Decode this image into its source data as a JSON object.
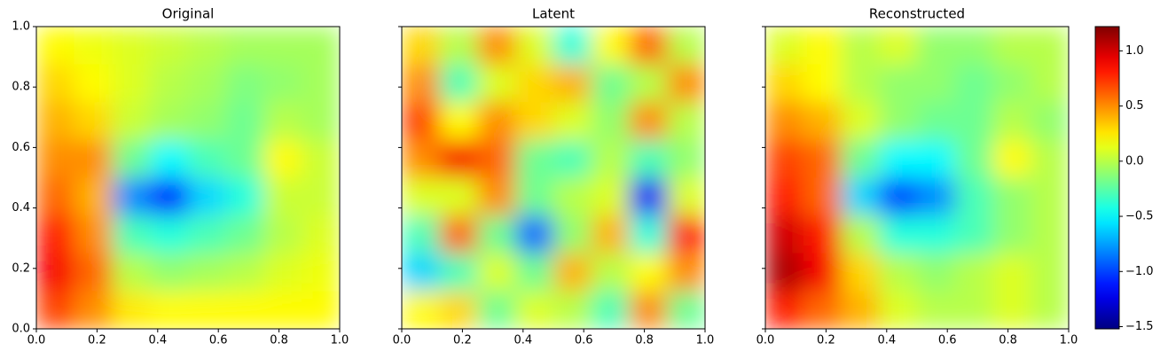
{
  "chart_data": [
    {
      "type": "contour",
      "title": "Original",
      "xlim": [
        0,
        1
      ],
      "ylim": [
        0,
        1
      ],
      "xticks": [
        {
          "value": 0,
          "label": "0.0"
        },
        {
          "value": 0.2,
          "label": "0.2"
        },
        {
          "value": 0.4,
          "label": "0.4"
        },
        {
          "value": 0.6,
          "label": "0.6"
        },
        {
          "value": 0.8,
          "label": "0.8"
        },
        {
          "value": 1,
          "label": "1.0"
        }
      ],
      "yticks": [
        {
          "value": 0,
          "label": "0.0"
        },
        {
          "value": 0.2,
          "label": "0.2"
        },
        {
          "value": 0.4,
          "label": "0.4"
        },
        {
          "value": 0.6,
          "label": "0.6"
        },
        {
          "value": 0.8,
          "label": "0.8"
        },
        {
          "value": 1,
          "label": "1.0"
        }
      ],
      "z": [
        [
          0.2,
          0.15,
          0.1,
          0.05,
          0,
          -0.05,
          -0.05,
          -0.05
        ],
        [
          0.3,
          0.2,
          0.1,
          0,
          -0.05,
          -0.15,
          -0.1,
          -0.05
        ],
        [
          0.4,
          0.3,
          0.05,
          -0.05,
          -0.1,
          -0.2,
          0,
          -0.05
        ],
        [
          0.5,
          0.5,
          -0.2,
          -0.5,
          -0.3,
          -0.2,
          0.2,
          0.05
        ],
        [
          0.6,
          0.4,
          -0.8,
          -1.1,
          -0.6,
          -0.4,
          0.05,
          0.05
        ],
        [
          0.8,
          0.5,
          -0.3,
          -0.4,
          -0.3,
          -0.2,
          0,
          0.1
        ],
        [
          0.9,
          0.6,
          0,
          -0.1,
          -0.05,
          0,
          0.1,
          0.15
        ],
        [
          0.7,
          0.5,
          0.25,
          0.2,
          0.2,
          0.2,
          0.2,
          0.2
        ]
      ]
    },
    {
      "type": "contour",
      "title": "Latent",
      "xlim": [
        0,
        1
      ],
      "ylim": [
        0,
        1
      ],
      "xticks": [
        {
          "value": 0,
          "label": "0.0"
        },
        {
          "value": 0.2,
          "label": "0.2"
        },
        {
          "value": 0.4,
          "label": "0.4"
        },
        {
          "value": 0.6,
          "label": "0.6"
        },
        {
          "value": 0.8,
          "label": "0.8"
        },
        {
          "value": 1,
          "label": "1.0"
        }
      ],
      "yticks": [
        0,
        0.2,
        0.4,
        0.6,
        0.8,
        1
      ],
      "z": [
        [
          0.3,
          0,
          0.5,
          0.1,
          -0.4,
          0.2,
          0.6,
          0
        ],
        [
          0.5,
          -0.3,
          0.1,
          0.3,
          0.4,
          -0.2,
          0,
          0.5
        ],
        [
          0.7,
          0.2,
          0.5,
          0.3,
          0.1,
          -0.1,
          0.5,
          0
        ],
        [
          0.5,
          0.9,
          0.6,
          -0.2,
          -0.3,
          0,
          -0.3,
          -0.1
        ],
        [
          0.1,
          0.1,
          0.5,
          -0.2,
          0,
          0.1,
          -1.2,
          0.1
        ],
        [
          -0.3,
          0.6,
          -0.2,
          -0.9,
          -0.1,
          0.4,
          -0.4,
          0.8
        ],
        [
          -0.6,
          -0.3,
          0.1,
          -0.2,
          0.4,
          0,
          0.2,
          0.5
        ],
        [
          0.2,
          0.3,
          -0.2,
          0.1,
          0,
          -0.3,
          0.5,
          -0.2
        ]
      ]
    },
    {
      "type": "contour",
      "title": "Reconstructed",
      "xlim": [
        0,
        1
      ],
      "ylim": [
        0,
        1
      ],
      "xticks": [
        {
          "value": 0,
          "label": "0.0"
        },
        {
          "value": 0.2,
          "label": "0.2"
        },
        {
          "value": 0.4,
          "label": "0.4"
        },
        {
          "value": 0.6,
          "label": "0.6"
        },
        {
          "value": 0.8,
          "label": "0.8"
        },
        {
          "value": 1,
          "label": "1.0"
        }
      ],
      "yticks": [
        0,
        0.2,
        0.4,
        0.6,
        0.8,
        1
      ],
      "z": [
        [
          0.1,
          0.2,
          0,
          0.1,
          -0.1,
          -0.1,
          0,
          0
        ],
        [
          0.3,
          0.2,
          0,
          -0.1,
          -0.1,
          -0.2,
          -0.1,
          0
        ],
        [
          0.5,
          0.4,
          0.1,
          -0.1,
          -0.2,
          -0.2,
          0,
          -0.1
        ],
        [
          0.7,
          0.6,
          -0.2,
          -0.5,
          -0.5,
          -0.2,
          0.2,
          0
        ],
        [
          0.8,
          0.6,
          -0.6,
          -1.0,
          -0.8,
          -0.3,
          -0.1,
          0
        ],
        [
          1.0,
          0.8,
          0,
          -0.4,
          -0.4,
          -0.3,
          -0.1,
          0
        ],
        [
          1.1,
          0.9,
          0.3,
          0,
          -0.1,
          0,
          0.1,
          0
        ],
        [
          0.8,
          0.6,
          0.4,
          0.1,
          0,
          0,
          0.1,
          0
        ]
      ]
    }
  ],
  "colorbar": {
    "colormap": "jet",
    "lim": [
      -1.52,
      1.22
    ],
    "ticks": [
      {
        "value": 1,
        "label": "1.0"
      },
      {
        "value": 0.5,
        "label": "0.5"
      },
      {
        "value": 0,
        "label": "0.0"
      },
      {
        "value": -0.5,
        "label": "−0.5"
      },
      {
        "value": -1,
        "label": "−1.0"
      },
      {
        "value": -1.5,
        "label": "−1.5"
      }
    ]
  }
}
